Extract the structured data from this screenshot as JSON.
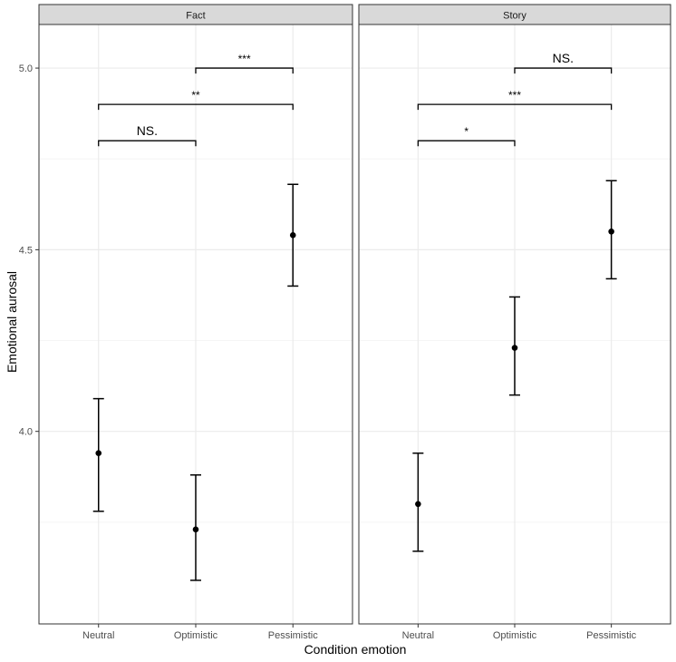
{
  "chart_data": {
    "type": "scatter",
    "subtype": "point-with-errorbars",
    "facets": [
      "Fact",
      "Story"
    ],
    "categories": [
      "Neutral",
      "Optimistic",
      "Pessimistic"
    ],
    "xlabel": "Condition emotion",
    "ylabel": "Emotional aurosal",
    "ylim": [
      3.47,
      5.12
    ],
    "yticks": [
      4.0,
      4.5,
      5.0
    ],
    "ytick_labels": [
      "4.0",
      "4.5",
      "5.0"
    ],
    "grid": true,
    "panels": [
      {
        "facet": "Fact",
        "points": [
          {
            "x": "Neutral",
            "y": 3.94,
            "lower": 3.78,
            "upper": 4.09
          },
          {
            "x": "Optimistic",
            "y": 3.73,
            "lower": 3.59,
            "upper": 3.88
          },
          {
            "x": "Pessimistic",
            "y": 4.54,
            "lower": 4.4,
            "upper": 4.68
          }
        ],
        "brackets": [
          {
            "from": "Optimistic",
            "to": "Pessimistic",
            "y": 5.0,
            "label": "***"
          },
          {
            "from": "Neutral",
            "to": "Pessimistic",
            "y": 4.9,
            "label": "**"
          },
          {
            "from": "Neutral",
            "to": "Optimistic",
            "y": 4.8,
            "label": "NS."
          }
        ]
      },
      {
        "facet": "Story",
        "points": [
          {
            "x": "Neutral",
            "y": 3.8,
            "lower": 3.67,
            "upper": 3.94
          },
          {
            "x": "Optimistic",
            "y": 4.23,
            "lower": 4.1,
            "upper": 4.37
          },
          {
            "x": "Pessimistic",
            "y": 4.55,
            "lower": 4.42,
            "upper": 4.69
          }
        ],
        "brackets": [
          {
            "from": "Optimistic",
            "to": "Pessimistic",
            "y": 5.0,
            "label": "NS."
          },
          {
            "from": "Neutral",
            "to": "Pessimistic",
            "y": 4.9,
            "label": "***"
          },
          {
            "from": "Neutral",
            "to": "Optimistic",
            "y": 4.8,
            "label": "*"
          }
        ]
      }
    ]
  },
  "colors": {
    "point": "#000000",
    "errorbar": "#000000",
    "strip_fill": "#d9d9d9",
    "grid_major": "#ebebeb",
    "grid_minor": "#f5f5f5",
    "panel_border": "#333333"
  }
}
